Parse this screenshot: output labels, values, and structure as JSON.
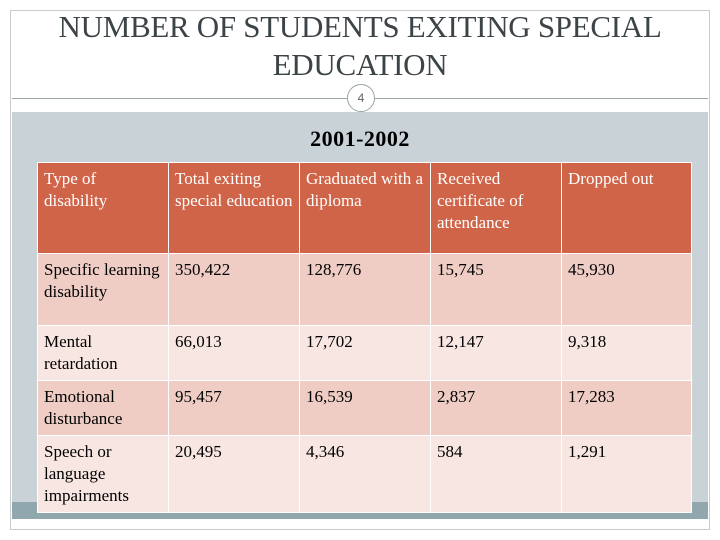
{
  "slide": {
    "title": "NUMBER OF STUDENTS EXITING SPECIAL EDUCATION",
    "slide_number": "4",
    "subtitle": "2001-2002"
  },
  "table": {
    "headers": [
      "Type of disability",
      "Total exiting special education",
      "Graduated with a diploma",
      "Received certificate of attendance",
      "Dropped out"
    ],
    "rows": [
      [
        "Specific learning disability",
        "350,422",
        "128,776",
        "15,745",
        "45,930"
      ],
      [
        "Mental retardation",
        "66,013",
        "17,702",
        "12,147",
        "9,318"
      ],
      [
        "Emotional disturbance",
        "95,457",
        "16,539",
        "2,837",
        "17,283"
      ],
      [
        "Speech or language impairments",
        "20,495",
        "4,346",
        "584",
        "1,291"
      ]
    ]
  },
  "colors": {
    "header_fill": "#d06448",
    "row_fill_dark": "#efcdc5",
    "row_fill_light": "#f7e6e2",
    "band": "#c9d3d7",
    "band_bottom": "#8fa7ad"
  }
}
